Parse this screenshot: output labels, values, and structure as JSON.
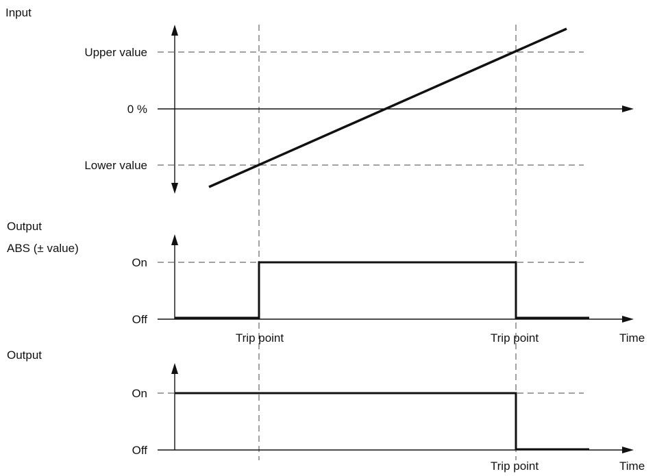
{
  "input_panel": {
    "title": "Input",
    "upper_label": "Upper value",
    "zero_label": "0 %",
    "lower_label": "Lower value"
  },
  "abs_output_panel": {
    "title_line1": "Output",
    "title_line2": "ABS (± value)",
    "on_label": "On",
    "off_label": "Off",
    "trip_label_1": "Trip point",
    "trip_label_2": "Trip point",
    "time_label": "Time"
  },
  "output_panel": {
    "title": "Output",
    "on_label": "On",
    "off_label": "Off",
    "trip_label": "Trip point",
    "time_label": "Time"
  }
}
